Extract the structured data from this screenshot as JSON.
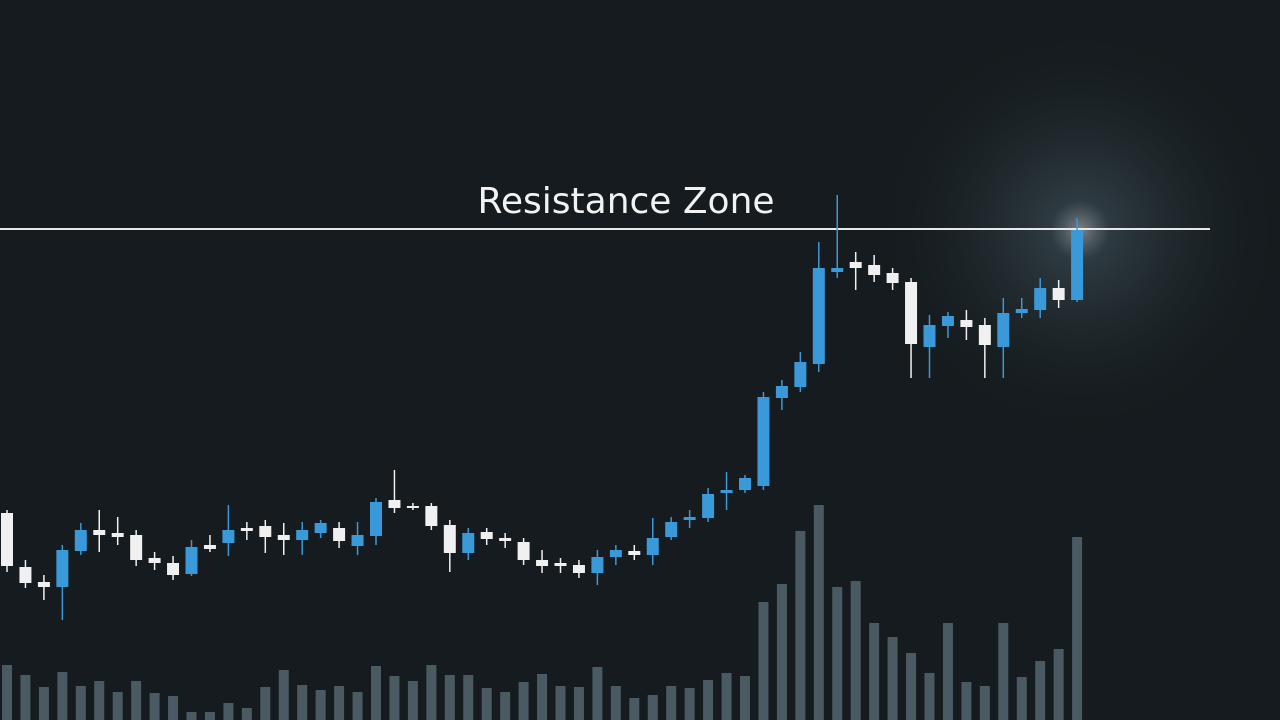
{
  "chart_data": {
    "type": "candlestick",
    "annotation": "Resistance Zone",
    "resistance": 491,
    "ylim": [
      0,
      720
    ],
    "volume_ylim": [
      0,
      720
    ],
    "up_color": "#3a9ad9",
    "down_color": "#f0f0f0",
    "volume_color": "#4a5a63",
    "line_color": "#e8e8e8",
    "open": [
      207,
      153,
      138,
      133,
      169,
      190,
      187,
      185,
      162,
      157,
      146,
      175,
      177,
      192,
      194,
      185,
      180,
      187,
      192,
      174,
      184,
      220,
      214,
      214,
      195,
      167,
      188,
      182,
      178,
      160,
      157,
      155,
      147,
      163,
      169,
      165,
      183,
      200,
      202,
      227,
      230,
      234,
      322,
      333,
      356,
      448,
      458,
      455,
      447,
      438,
      373,
      394,
      400,
      395,
      373,
      407,
      410,
      432,
      420
    ],
    "high": [
      210,
      160,
      145,
      175,
      197,
      210,
      203,
      190,
      168,
      164,
      180,
      185,
      215,
      198,
      200,
      197,
      198,
      200,
      198,
      198,
      222,
      250,
      217,
      217,
      200,
      192,
      192,
      187,
      182,
      170,
      162,
      160,
      170,
      175,
      175,
      202,
      203,
      210,
      232,
      248,
      245,
      328,
      340,
      368,
      478,
      525,
      468,
      465,
      452,
      442,
      405,
      408,
      410,
      402,
      422,
      422,
      442,
      440,
      502
    ],
    "low": [
      148,
      132,
      120,
      100,
      165,
      168,
      175,
      154,
      150,
      140,
      144,
      168,
      164,
      180,
      167,
      165,
      165,
      182,
      172,
      165,
      175,
      207,
      210,
      190,
      148,
      160,
      175,
      172,
      155,
      147,
      147,
      142,
      135,
      155,
      160,
      155,
      180,
      192,
      198,
      210,
      227,
      230,
      310,
      328,
      348,
      442,
      430,
      438,
      430,
      342,
      342,
      382,
      380,
      342,
      342,
      402,
      402,
      412,
      418
    ],
    "close": [
      154,
      137,
      133,
      170,
      190,
      185,
      183,
      160,
      157,
      145,
      173,
      171,
      190,
      189,
      183,
      180,
      190,
      197,
      179,
      185,
      218,
      212,
      212,
      194,
      167,
      187,
      181,
      179,
      160,
      154,
      154,
      147,
      163,
      170,
      165,
      182,
      198,
      203,
      226,
      230,
      242,
      323,
      334,
      358,
      452,
      452,
      452,
      445,
      437,
      376,
      395,
      404,
      393,
      375,
      407,
      411,
      432,
      420,
      490
    ],
    "volume": [
      55,
      45,
      33,
      48,
      34,
      39,
      28,
      39,
      27,
      24,
      8,
      8,
      17,
      12,
      33,
      50,
      35,
      30,
      34,
      28,
      54,
      44,
      39,
      55,
      45,
      45,
      32,
      28,
      38,
      46,
      34,
      33,
      53,
      34,
      22,
      25,
      34,
      32,
      40,
      47,
      44,
      118,
      136,
      189,
      215,
      133,
      139,
      97,
      83,
      67,
      47,
      97,
      38,
      34,
      97,
      43,
      59,
      71,
      183
    ]
  }
}
